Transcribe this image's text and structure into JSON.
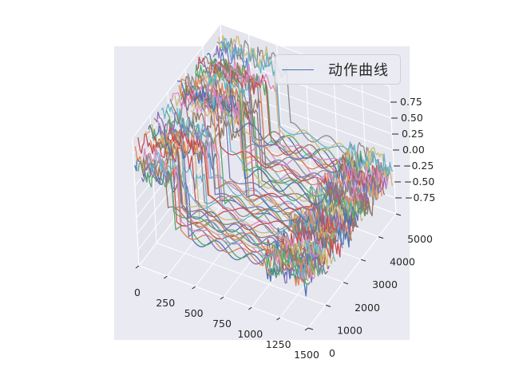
{
  "chart_data": {
    "type": "line",
    "projection": "3d",
    "style": "seaborn-darkgrid",
    "background_color": "#eaeaf2",
    "title": "",
    "xlabel": "",
    "ylabel": "",
    "zlabel": "",
    "x_ticks": [
      "0",
      "250",
      "500",
      "750",
      "1000",
      "1250",
      "1500"
    ],
    "y_ticks": [
      "0",
      "1000",
      "2000",
      "3000",
      "4000",
      "5000"
    ],
    "z_ticks": [
      "0.75",
      "0.50",
      "0.25",
      "0.00",
      "−0.25",
      "−0.50",
      "−0.75"
    ],
    "xlim": [
      0,
      1500
    ],
    "ylim": [
      0,
      5000
    ],
    "zlim": [
      -1.0,
      1.0
    ],
    "grid": true,
    "series_count": 60,
    "series_length": 1500,
    "series_shape": "each curve is a time series along x, offset in y; values near +0.5 for the first ~300 steps, then drop to a near-constant level around -0.3 with small oscillations toward the end",
    "legend": {
      "position": "upper-right",
      "entries": [
        {
          "name": "动作曲线",
          "color": "#4c72b0"
        }
      ]
    },
    "palette": [
      "#4c72b0",
      "#dd8452",
      "#55a868",
      "#c44e52",
      "#8172b3",
      "#937860",
      "#da8bc3",
      "#8c8c8c",
      "#ccb974",
      "#64b5cd"
    ]
  }
}
